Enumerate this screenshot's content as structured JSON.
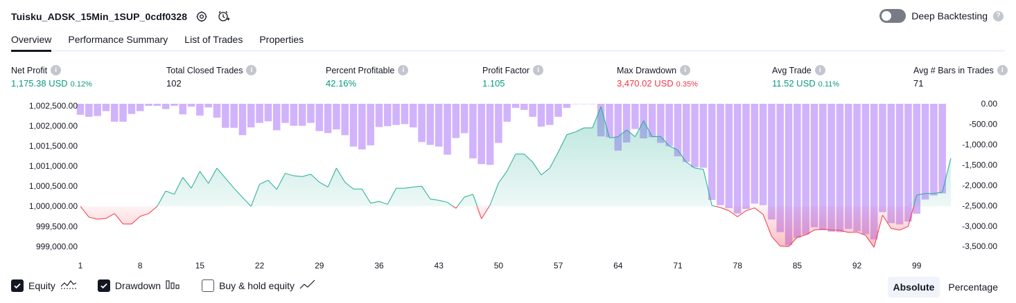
{
  "header": {
    "strategy_name": "Tuisku_ADSK_15Min_1SUP_0cdf0328",
    "deep_backtesting_label": "Deep Backtesting"
  },
  "tabs": [
    {
      "label": "Overview",
      "active": true
    },
    {
      "label": "Performance Summary",
      "active": false
    },
    {
      "label": "List of Trades",
      "active": false
    },
    {
      "label": "Properties",
      "active": false
    }
  ],
  "metrics": {
    "net_profit": {
      "label": "Net Profit",
      "value": "1,175.38 USD",
      "pct": "0.12%",
      "color": "#089981"
    },
    "total_closed_trades": {
      "label": "Total Closed Trades",
      "value": "102"
    },
    "percent_profitable": {
      "label": "Percent Profitable",
      "value": "42.16%",
      "color": "#089981"
    },
    "profit_factor": {
      "label": "Profit Factor",
      "value": "1.105",
      "color": "#089981"
    },
    "max_drawdown": {
      "label": "Max Drawdown",
      "value": "3,470.02 USD",
      "pct": "0.35%",
      "color": "#f23645"
    },
    "avg_trade": {
      "label": "Avg Trade",
      "value": "11.52 USD",
      "pct": "0.11%",
      "color": "#089981"
    },
    "avg_bars": {
      "label": "Avg # Bars in Trades",
      "value": "71"
    }
  },
  "legend": {
    "equity": {
      "label": "Equity",
      "checked": true
    },
    "drawdown": {
      "label": "Drawdown",
      "checked": true
    },
    "buy_hold": {
      "label": "Buy & hold equity",
      "checked": false
    }
  },
  "modes": {
    "absolute": "Absolute",
    "percentage": "Percentage",
    "active": "absolute"
  },
  "colors": {
    "equity_positive": "#22ab94",
    "equity_negative": "#f23645",
    "drawdown_bar": "#d1b3fb",
    "baseline": 1000000
  },
  "chart_data": {
    "type": "area",
    "x_ticks": [
      1,
      8,
      15,
      22,
      29,
      36,
      43,
      50,
      57,
      64,
      71,
      78,
      85,
      92,
      99
    ],
    "left_axis": {
      "label": "Equity",
      "ylim": [
        998800,
        1002550
      ],
      "ticks": [
        1002500,
        1002000,
        1001500,
        1001000,
        1000500,
        1000000,
        999500,
        999000
      ],
      "tick_labels": [
        "1,002,500.00",
        "1,002,000.00",
        "1,001,500.00",
        "1,001,000.00",
        "1,000,500.00",
        "1,000,000.00",
        "999,500.00",
        "999,000.00"
      ]
    },
    "right_axis": {
      "label": "Drawdown",
      "ylim": [
        -3700,
        0
      ],
      "ticks": [
        0,
        -500,
        -1000,
        -1500,
        -2000,
        -2500,
        -3000,
        -3500
      ],
      "tick_labels": [
        "0.00",
        "-500.00",
        "-1,000.00",
        "-1,500.00",
        "-2,000.00",
        "-2,500.00",
        "-3,000.00",
        "-3,500.00"
      ]
    },
    "series": [
      {
        "name": "Equity",
        "type": "area",
        "x_start": 1,
        "values": [
          1000000,
          999730,
          999680,
          999700,
          999820,
          999560,
          999560,
          999750,
          999820,
          1000000,
          1000380,
          1000300,
          1000720,
          1000450,
          1000870,
          1000570,
          1000950,
          1000700,
          1000450,
          1000220,
          1000000,
          1000550,
          1000650,
          1000420,
          1000820,
          1000760,
          1000740,
          1000800,
          1000600,
          1000480,
          1000950,
          1000600,
          1000430,
          1000430,
          1000080,
          1000120,
          1000050,
          1000450,
          1000450,
          1000480,
          1000500,
          1000180,
          1000150,
          1000100,
          999950,
          1000230,
          1000300,
          999690,
          1000030,
          1000580,
          1000880,
          1001300,
          1001300,
          1001100,
          1000780,
          1000950,
          1001350,
          1001780,
          1001850,
          1001950,
          1001950,
          1002480,
          1001700,
          1001730,
          1001900,
          1001730,
          1002130,
          1001730,
          1001740,
          1001500,
          1001400,
          1001100,
          1000950,
          1000920,
          1000020,
          999970,
          999890,
          999740,
          999890,
          999960,
          999800,
          999250,
          999010,
          999000,
          999230,
          999290,
          999410,
          999430,
          999410,
          999400,
          999350,
          999360,
          999280,
          998980,
          999780,
          999450,
          999410,
          999500,
          1000280,
          1000320,
          1000320,
          1000350,
          1001200
        ]
      },
      {
        "name": "Drawdown",
        "type": "bar",
        "x_start": 1,
        "values": [
          -270,
          -320,
          -300,
          -180,
          -440,
          -440,
          -250,
          -180,
          -50,
          -50,
          -130,
          -50,
          -260,
          -70,
          -290,
          -90,
          -340,
          -590,
          -590,
          -770,
          -580,
          -470,
          -430,
          -650,
          -470,
          -540,
          -540,
          -470,
          -670,
          -720,
          -630,
          -770,
          -1050,
          -1120,
          -1020,
          -570,
          -550,
          -520,
          -500,
          -580,
          -940,
          -1010,
          -1050,
          -1250,
          -840,
          -720,
          -1340,
          -1480,
          -1500,
          -960,
          -440,
          -100,
          -150,
          -320,
          -560,
          -520,
          -320,
          -100,
          0,
          0,
          -1,
          -800,
          -820,
          -1150,
          -950,
          -620,
          -850,
          -820,
          -960,
          -1040,
          -1290,
          -1430,
          -1560,
          -1570,
          -2360,
          -2490,
          -2560,
          -2690,
          -2580,
          -2450,
          -2490,
          -2840,
          -3150,
          -3470,
          -3290,
          -3210,
          -3030,
          -3100,
          -3140,
          -3150,
          -3070,
          -3130,
          -3200,
          -3330,
          -2660,
          -2930,
          -2960,
          -2890,
          -2700,
          -2350,
          -2250,
          -2200
        ]
      }
    ]
  }
}
